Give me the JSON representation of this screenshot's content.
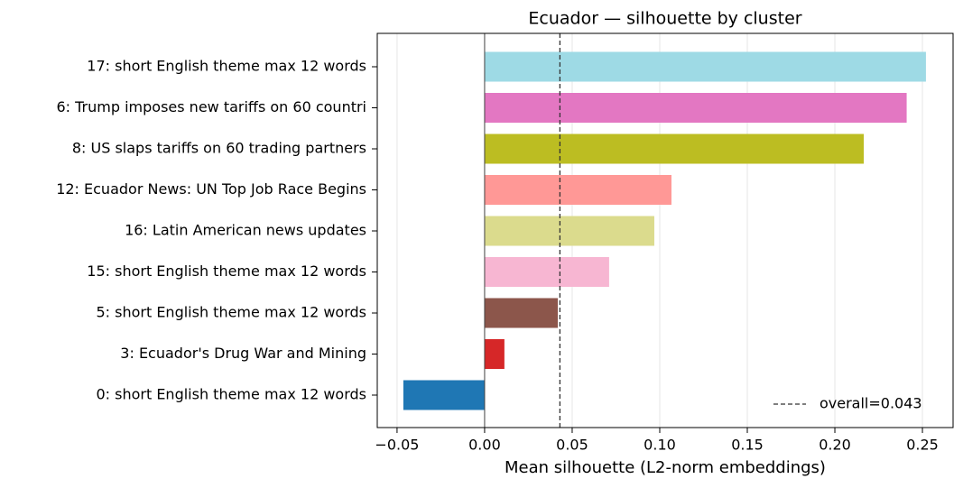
{
  "chart_data": {
    "type": "barh",
    "title": "Ecuador — silhouette by cluster",
    "xlabel": "Mean silhouette (L2-norm embeddings)",
    "categories": [
      "17: short English theme max 12 words",
      "6: Trump imposes new tariffs on 60 countri",
      "8: US slaps tariffs on 60 trading partners",
      "12: Ecuador News: UN Top Job Race Begins",
      "16: Latin American news updates",
      "15: short English theme max 12 words",
      "5: short English theme max 12 words",
      "3: Ecuador's Drug War and Mining",
      "0: short English theme max 12 words"
    ],
    "values": [
      0.252,
      0.241,
      0.2165,
      0.1067,
      0.0969,
      0.0711,
      0.0418,
      0.0113,
      -0.0464
    ],
    "colors": [
      "#9edae5",
      "#e377c2",
      "#bcbd22",
      "#ff9896",
      "#dbdb8d",
      "#f7b6d2",
      "#8c564b",
      "#d62728",
      "#1f77b4"
    ],
    "xlim": [
      -0.0613,
      0.2675
    ],
    "xticks": [
      {
        "value": -0.05,
        "label": "−0.05"
      },
      {
        "value": 0,
        "label": "0.00"
      },
      0.05,
      {
        "value": 0.1,
        "label": "0.10"
      },
      0.15,
      {
        "value": 0.2,
        "label": "0.20"
      },
      0.25
    ],
    "grid": true,
    "reference_line": {
      "value": 0.043,
      "label": "overall=0.043"
    },
    "legend_position": "lower right"
  }
}
